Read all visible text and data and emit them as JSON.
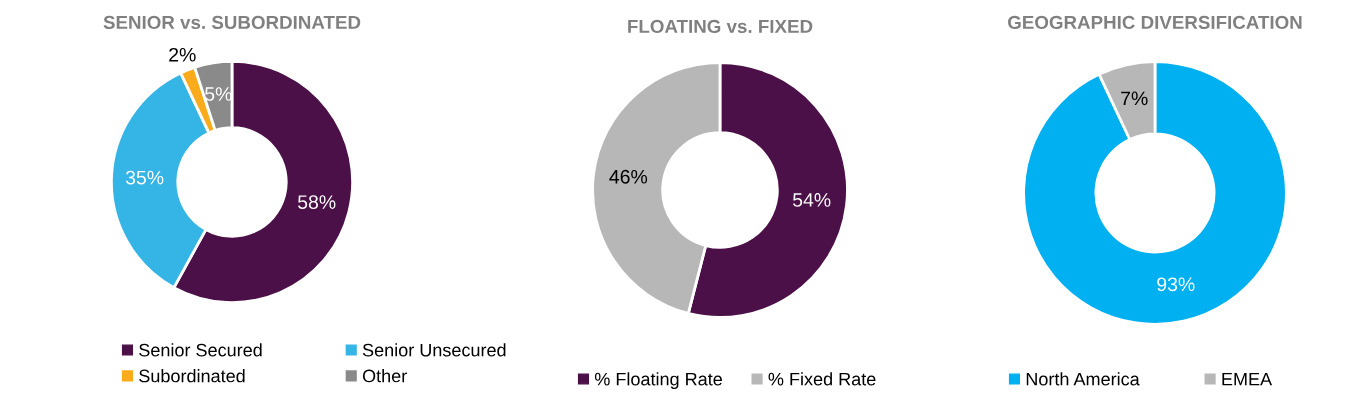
{
  "chart_data": [
    {
      "type": "donut",
      "title": "SENIOR vs. SUBORDINATED",
      "categories": [
        "Senior Secured",
        "Senior Unsecured",
        "Subordinated",
        "Other"
      ],
      "values": [
        58,
        35,
        2,
        5
      ],
      "value_labels": [
        "58%",
        "35%",
        "2%",
        "5%"
      ],
      "colors": [
        "#4b1047",
        "#35b4e6",
        "#f9ab1c",
        "#8a8a8a"
      ],
      "legend": "bottom"
    },
    {
      "type": "donut",
      "title": "FLOATING vs. FIXED",
      "categories": [
        "% Floating Rate",
        "% Fixed Rate"
      ],
      "values": [
        54,
        46
      ],
      "value_labels": [
        "54%",
        "46%"
      ],
      "colors": [
        "#4b1047",
        "#b7b7b7"
      ],
      "legend": "bottom"
    },
    {
      "type": "donut",
      "title": "GEOGRAPHIC DIVERSIFICATION",
      "categories": [
        "North America",
        "EMEA"
      ],
      "values": [
        93,
        7
      ],
      "value_labels": [
        "93%",
        "7%"
      ],
      "colors": [
        "#00b0f0",
        "#b7b7b7"
      ],
      "legend": "bottom"
    }
  ]
}
